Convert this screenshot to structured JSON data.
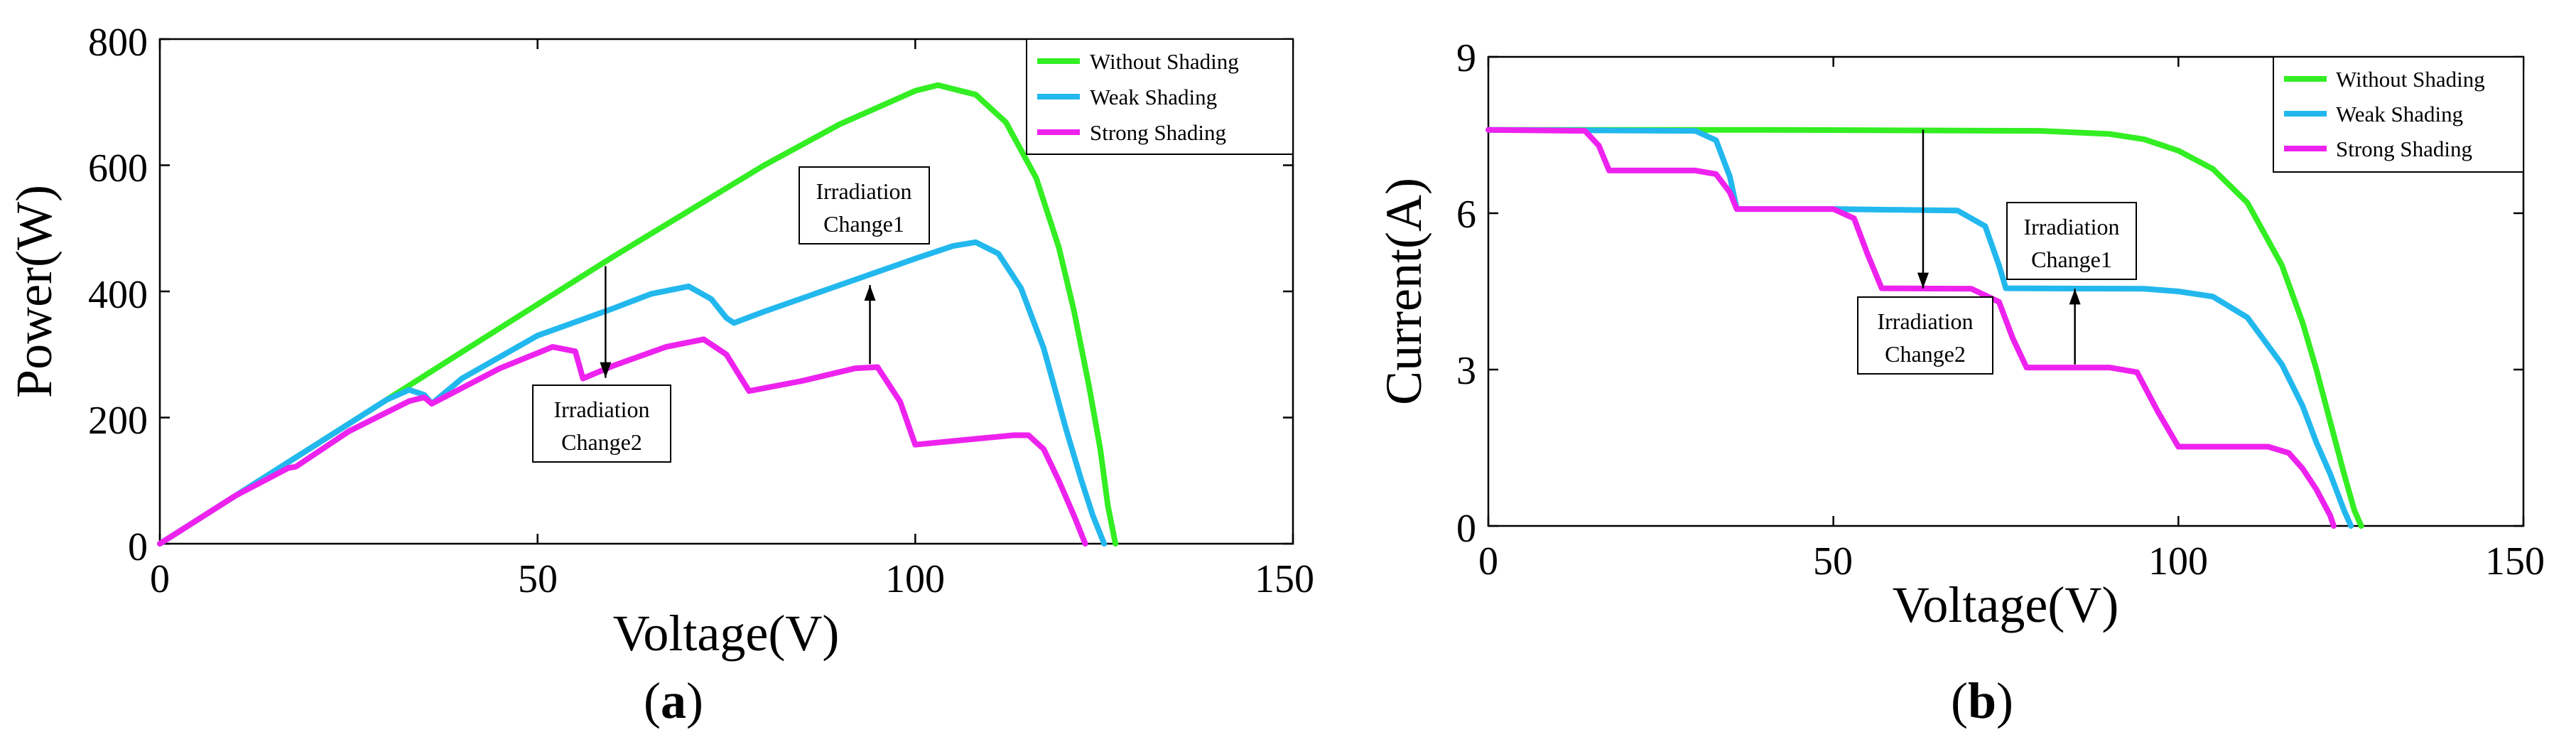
{
  "colors": {
    "without_shading": "#33ee22",
    "weak_shading": "#22b8ee",
    "strong_shading": "#ee22ee"
  },
  "chart_data": [
    {
      "type": "line",
      "panel_label": "a",
      "title": "",
      "xlabel": "Voltage(V)",
      "ylabel": "Power(W)",
      "xlim": [
        0,
        150
      ],
      "ylim": [
        0,
        800
      ],
      "xticks": [
        0,
        50,
        100,
        150
      ],
      "yticks": [
        0,
        200,
        400,
        600,
        800
      ],
      "grid": false,
      "legend_position": "top-right",
      "series": [
        {
          "name": "Without Shading",
          "color_key": "without_shading",
          "x": [
            0,
            20,
            40,
            60,
            80,
            90,
            100,
            103,
            108,
            112,
            116,
            119,
            121,
            123,
            124.5,
            125.5,
            126.5
          ],
          "y": [
            0,
            152,
            304,
            455,
            600,
            665,
            718,
            727,
            712,
            668,
            580,
            470,
            370,
            250,
            150,
            60,
            0
          ]
        },
        {
          "name": "Weak Shading",
          "color_key": "weak_shading",
          "x": [
            0,
            10,
            20,
            30,
            33,
            35,
            36,
            40,
            50,
            60,
            65,
            70,
            73,
            75,
            76,
            80,
            90,
            100,
            105,
            108,
            111,
            114,
            117,
            120,
            122,
            123.5,
            125
          ],
          "y": [
            0,
            76,
            152,
            228,
            244,
            236,
            222,
            262,
            330,
            373,
            396,
            408,
            388,
            358,
            350,
            368,
            410,
            452,
            472,
            478,
            460,
            405,
            310,
            180,
            100,
            45,
            0
          ]
        },
        {
          "name": "Strong Shading",
          "color_key": "strong_shading",
          "x": [
            0,
            10,
            17,
            18,
            25,
            33,
            35,
            36,
            45,
            52,
            55,
            56,
            60,
            67,
            72,
            75,
            78,
            85,
            92,
            95,
            98,
            100,
            106,
            113,
            115,
            117,
            119,
            121,
            122.5
          ],
          "y": [
            0,
            76,
            120,
            122,
            178,
            226,
            232,
            222,
            278,
            312,
            305,
            262,
            282,
            312,
            324,
            300,
            242,
            258,
            278,
            280,
            225,
            157,
            164,
            172,
            172,
            150,
            100,
            45,
            0
          ]
        }
      ],
      "annotations": [
        {
          "text": [
            "Irradiation",
            "Change1"
          ],
          "arrow_from": [
            94,
            285
          ],
          "arrow_to": [
            94,
            410
          ]
        },
        {
          "text": [
            "Irradiation",
            "Change2"
          ],
          "arrow_from": [
            59,
            440
          ],
          "arrow_to": [
            59,
            263
          ]
        }
      ]
    },
    {
      "type": "line",
      "panel_label": "b",
      "title": "",
      "xlabel": "Voltage(V)",
      "ylabel": "Current(A)",
      "xlim": [
        0,
        150
      ],
      "ylim": [
        0,
        9
      ],
      "xticks": [
        0,
        50,
        100,
        150
      ],
      "yticks": [
        0,
        3,
        6,
        9
      ],
      "grid": false,
      "legend_position": "top-right",
      "series": [
        {
          "name": "Without Shading",
          "color_key": "without_shading",
          "x": [
            0,
            40,
            80,
            90,
            95,
            100,
            105,
            110,
            115,
            118,
            120,
            122,
            124,
            125.5,
            126.5
          ],
          "y": [
            7.6,
            7.6,
            7.58,
            7.52,
            7.42,
            7.2,
            6.85,
            6.2,
            5.0,
            3.9,
            3.0,
            2.0,
            1.0,
            0.3,
            0
          ]
        },
        {
          "name": "Weak Shading",
          "color_key": "weak_shading",
          "x": [
            0,
            30,
            33,
            35,
            36,
            50,
            68,
            72,
            74,
            75,
            95,
            100,
            105,
            110,
            115,
            118,
            120,
            122,
            124,
            125
          ],
          "y": [
            7.6,
            7.58,
            7.4,
            6.7,
            6.08,
            6.08,
            6.05,
            5.75,
            5.0,
            4.56,
            4.55,
            4.5,
            4.4,
            4.0,
            3.1,
            2.3,
            1.6,
            1.0,
            0.3,
            0
          ]
        },
        {
          "name": "Strong Shading",
          "color_key": "strong_shading",
          "x": [
            0,
            14,
            16,
            17.5,
            30,
            33,
            35,
            36,
            50,
            53,
            55,
            57,
            70,
            74,
            76,
            78,
            90,
            94,
            97,
            100,
            113,
            116,
            118,
            120,
            122,
            122.5
          ],
          "y": [
            7.6,
            7.58,
            7.3,
            6.82,
            6.82,
            6.75,
            6.4,
            6.08,
            6.08,
            5.9,
            5.2,
            4.56,
            4.55,
            4.3,
            3.6,
            3.04,
            3.04,
            2.95,
            2.2,
            1.52,
            1.52,
            1.4,
            1.1,
            0.7,
            0.2,
            0
          ]
        }
      ],
      "annotations": [
        {
          "text": [
            "Irradiation",
            "Change1"
          ],
          "arrow_from": [
            85,
            3.1
          ],
          "arrow_to": [
            85,
            4.55
          ]
        },
        {
          "text": [
            "Irradiation",
            "Change2"
          ],
          "arrow_from": [
            63,
            7.6
          ],
          "arrow_to": [
            63,
            4.56
          ]
        }
      ]
    }
  ]
}
